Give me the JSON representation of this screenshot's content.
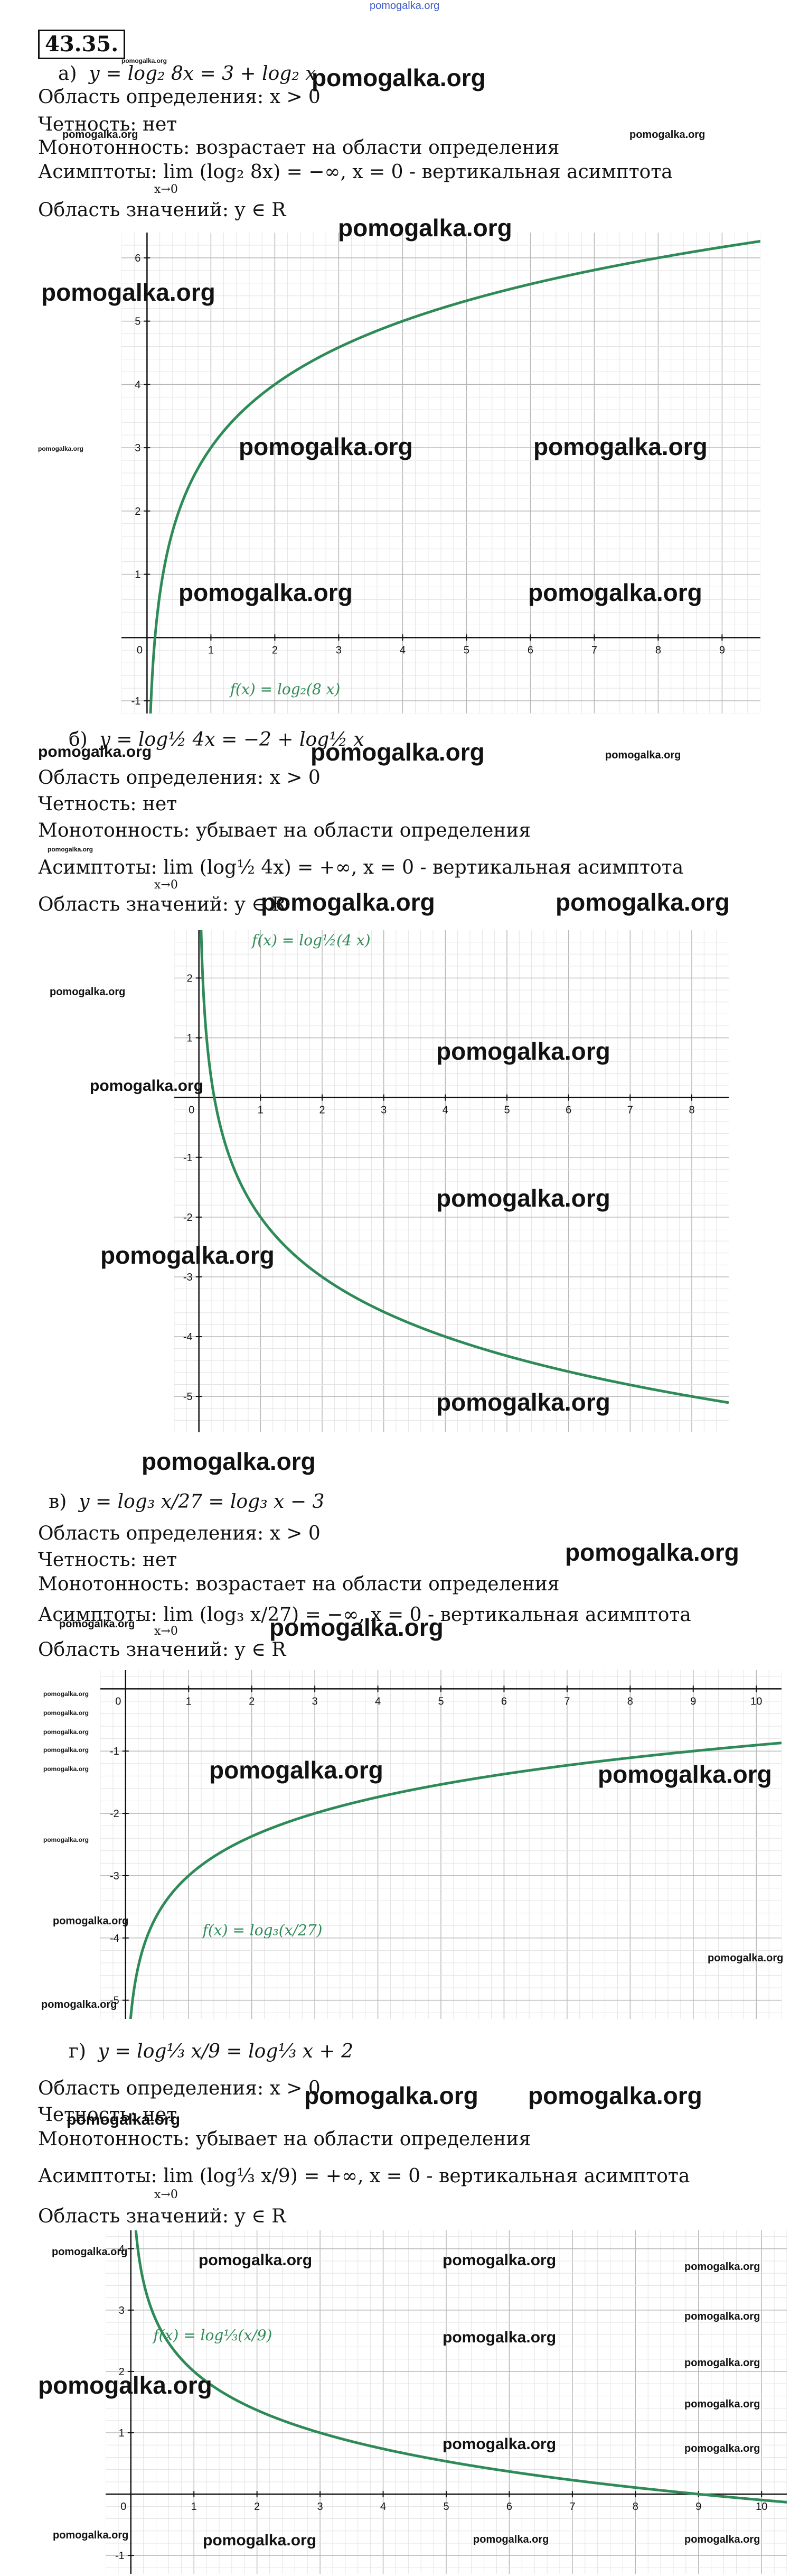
{
  "header": {
    "site": "pomogalka.org",
    "task_number": "43.35."
  },
  "watermark": "pomogalka.org",
  "parts": [
    {
      "label": "а)",
      "equation": "y = log₂ 8x = 3 + log₂ x",
      "domain": "Область определения: x > 0",
      "parity": "Четность: нет",
      "monotonic": "Монотонность: возрастает на области определения",
      "asymptotes": "Асимптоты: lim (log₂ 8x) = −∞, x = 0 - вертикальная асимптота",
      "limit_sub": "x→0",
      "range": "Область значений: y ∈ R",
      "function_label": "f(x) = log₂(8 x)"
    },
    {
      "label": "б)",
      "equation": "y = log½ 4x = −2 + log½ x",
      "domain": "Область определения: x > 0",
      "parity": "Четность: нет",
      "monotonic": "Монотонность: убывает на области определения",
      "asymptotes": "Асимптоты: lim (log½ 4x) = +∞, x = 0 - вертикальная асимптота",
      "limit_sub": "x→0",
      "range": "Область значений: y ∈ R",
      "function_label": "f(x) = log½(4 x)"
    },
    {
      "label": "в)",
      "equation": "y = log₃ x/27 = log₃ x − 3",
      "domain": "Область определения: x > 0",
      "parity": "Четность: нет",
      "monotonic": "Монотонность: возрастает на области определения",
      "asymptotes": "Асимптоты: lim (log₃ x/27) = −∞, x = 0 - вертикальная асимптота",
      "limit_sub": "x→0",
      "range": "Область значений: y ∈ R",
      "function_label": "f(x) = log₃(x/27)"
    },
    {
      "label": "г)",
      "equation": "y = log⅓ x/9 = log⅓ x + 2",
      "domain": "Область определения: x > 0",
      "parity": "Четность: нет",
      "monotonic": "Монотонность: убывает на области определения",
      "asymptotes": "Асимптоты: lim (log⅓ x/9) = +∞, x = 0 - вертикальная асимптота",
      "limit_sub": "x→0",
      "range": "Область значений: y ∈ R",
      "function_label": "f(x) = log⅓(x/9)"
    }
  ],
  "chart_data": [
    {
      "type": "line",
      "function": "log2(8x)",
      "base": 2,
      "factor": 8,
      "xlim": [
        -0.4,
        9.6
      ],
      "ylim": [
        -1.2,
        6.4
      ],
      "x_ticks": [
        0,
        1,
        2,
        3,
        4,
        5,
        6,
        7,
        8,
        9
      ],
      "y_ticks": [
        -1,
        1,
        2,
        3,
        4,
        5,
        6
      ],
      "color": "#2e8b57"
    },
    {
      "type": "line",
      "function": "log0.5(4x)",
      "base": 0.5,
      "factor": 4,
      "xlim": [
        -0.4,
        8.6
      ],
      "ylim": [
        -5.6,
        2.8
      ],
      "x_ticks": [
        0,
        1,
        2,
        3,
        4,
        5,
        6,
        7,
        8
      ],
      "y_ticks": [
        -5,
        -4,
        -3,
        -2,
        -1,
        1,
        2
      ],
      "color": "#2e8b57"
    },
    {
      "type": "line",
      "function": "log3(x/27)",
      "base": 3,
      "factor": 0.037037,
      "xlim": [
        -0.4,
        10.4
      ],
      "ylim": [
        -5.3,
        0.3
      ],
      "x_ticks": [
        0,
        1,
        2,
        3,
        4,
        5,
        6,
        7,
        8,
        9,
        10
      ],
      "y_ticks": [
        -5,
        -4,
        -3,
        -2,
        -1
      ],
      "color": "#2e8b57"
    },
    {
      "type": "line",
      "function": "log(1/3)(x/9)",
      "base": 0.333333,
      "factor": 0.111111,
      "xlim": [
        -0.4,
        10.4
      ],
      "ylim": [
        -1.3,
        4.3
      ],
      "x_ticks": [
        0,
        1,
        2,
        3,
        4,
        5,
        6,
        7,
        8,
        9,
        10
      ],
      "y_ticks": [
        -1,
        1,
        2,
        3,
        4
      ],
      "color": "#2e8b57"
    }
  ]
}
